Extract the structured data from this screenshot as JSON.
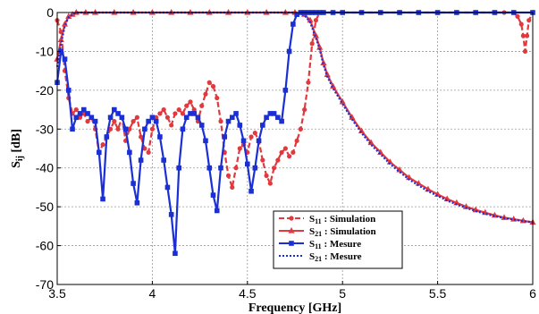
{
  "chart_data": {
    "type": "line",
    "title": "",
    "xlabel": "Frequency [GHz]",
    "ylabel_main": "S",
    "ylabel_sub": "ij",
    "ylabel_unit": " [dB]",
    "xlim": [
      3.5,
      6.0
    ],
    "ylim": [
      -70,
      0
    ],
    "xticks": [
      3.5,
      4,
      4.5,
      5,
      5.5,
      6
    ],
    "xtick_labels": [
      "3.5",
      "4",
      "4.5",
      "5",
      "5.5",
      "6"
    ],
    "yticks": [
      0,
      -10,
      -20,
      -30,
      -40,
      -50,
      -60,
      -70
    ],
    "ytick_labels": [
      "0",
      "-10",
      "-20",
      "-30",
      "-40",
      "-50",
      "-60",
      "-70"
    ],
    "grid": true,
    "legend_position": "bottom-right",
    "series": [
      {
        "id": "s11_sim",
        "name_main": "S",
        "name_sub": "11",
        "name_rest": " : Simulation",
        "color": "#e0393e",
        "dash": "dashed",
        "marker": "circle",
        "x": [
          3.5,
          3.52,
          3.54,
          3.56,
          3.58,
          3.6,
          3.62,
          3.64,
          3.66,
          3.68,
          3.7,
          3.72,
          3.74,
          3.76,
          3.78,
          3.8,
          3.82,
          3.84,
          3.86,
          3.88,
          3.9,
          3.92,
          3.94,
          3.96,
          3.98,
          4.0,
          4.02,
          4.04,
          4.06,
          4.08,
          4.1,
          4.12,
          4.14,
          4.16,
          4.18,
          4.2,
          4.22,
          4.24,
          4.26,
          4.28,
          4.3,
          4.32,
          4.34,
          4.36,
          4.38,
          4.4,
          4.42,
          4.44,
          4.46,
          4.48,
          4.5,
          4.52,
          4.54,
          4.56,
          4.58,
          4.6,
          4.62,
          4.64,
          4.66,
          4.68,
          4.7,
          4.72,
          4.74,
          4.76,
          4.78,
          4.8,
          4.82,
          4.84,
          4.86,
          4.88,
          4.9,
          4.95,
          5.0,
          5.1,
          5.2,
          5.3,
          5.4,
          5.5,
          5.6,
          5.7,
          5.8,
          5.85,
          5.9,
          5.92,
          5.94,
          5.95,
          5.96,
          5.97,
          5.98,
          6.0
        ],
        "y": [
          -2,
          -5,
          -15,
          -22,
          -26,
          -25,
          -27,
          -26,
          -28,
          -27,
          -30,
          -36,
          -34,
          -32,
          -30,
          -28,
          -30,
          -27,
          -33,
          -30,
          -28,
          -27,
          -32,
          -35,
          -36,
          -30,
          -27,
          -26,
          -25,
          -27,
          -29,
          -26,
          -25,
          -26,
          -24,
          -23,
          -25,
          -28,
          -24,
          -21,
          -18,
          -19,
          -22,
          -28,
          -36,
          -42,
          -45,
          -40,
          -35,
          -34,
          -36,
          -32,
          -31,
          -33,
          -38,
          -42,
          -44,
          -40,
          -38,
          -36,
          -35,
          -37,
          -36,
          -33,
          -30,
          -25,
          -18,
          -8,
          -2,
          0,
          0,
          0,
          0,
          0,
          0,
          0,
          0,
          0,
          0,
          0,
          0,
          0,
          0,
          -1,
          -3,
          -6,
          -10,
          -6,
          -2,
          0
        ]
      },
      {
        "id": "s21_sim",
        "name_main": "S",
        "name_sub": "21",
        "name_rest": " : Simulation",
        "color": "#e0393e",
        "dash": "solid",
        "marker": "triangle",
        "x": [
          3.5,
          3.52,
          3.54,
          3.56,
          3.58,
          3.6,
          3.65,
          3.7,
          3.8,
          3.9,
          4.0,
          4.1,
          4.2,
          4.3,
          4.4,
          4.5,
          4.6,
          4.7,
          4.75,
          4.8,
          4.83,
          4.86,
          4.88,
          4.9,
          4.92,
          4.95,
          5.0,
          5.05,
          5.1,
          5.15,
          5.2,
          5.25,
          5.3,
          5.35,
          5.4,
          5.45,
          5.5,
          5.55,
          5.6,
          5.65,
          5.7,
          5.75,
          5.8,
          5.85,
          5.9,
          5.95,
          6.0
        ],
        "y": [
          -12,
          -7,
          -3,
          -1,
          -0.5,
          0,
          0,
          0,
          0,
          0,
          0,
          0,
          0,
          0,
          0,
          0,
          0,
          0,
          0,
          -0.5,
          -2,
          -6,
          -9,
          -13,
          -16,
          -19,
          -23,
          -27,
          -30.5,
          -33.5,
          -36,
          -38.5,
          -40.5,
          -42.5,
          -44,
          -45.5,
          -46.8,
          -48,
          -49,
          -50,
          -50.8,
          -51.5,
          -52.2,
          -52.8,
          -53.2,
          -53.6,
          -54
        ]
      },
      {
        "id": "s11_mes",
        "name_main": "S",
        "name_sub": "11",
        "name_rest": " : Mesure",
        "color": "#1a2fd6",
        "dash": "solid",
        "marker": "square",
        "x": [
          3.5,
          3.52,
          3.54,
          3.56,
          3.58,
          3.6,
          3.62,
          3.64,
          3.66,
          3.68,
          3.7,
          3.72,
          3.74,
          3.76,
          3.78,
          3.8,
          3.82,
          3.84,
          3.86,
          3.88,
          3.9,
          3.92,
          3.94,
          3.96,
          3.98,
          4.0,
          4.02,
          4.04,
          4.06,
          4.08,
          4.1,
          4.12,
          4.14,
          4.16,
          4.18,
          4.2,
          4.22,
          4.24,
          4.26,
          4.28,
          4.3,
          4.32,
          4.34,
          4.36,
          4.38,
          4.4,
          4.42,
          4.44,
          4.46,
          4.48,
          4.5,
          4.52,
          4.54,
          4.56,
          4.58,
          4.6,
          4.62,
          4.64,
          4.66,
          4.68,
          4.7,
          4.72,
          4.74,
          4.76,
          4.78,
          4.8,
          4.82,
          4.84,
          4.86,
          4.88,
          4.9,
          4.95,
          5.0,
          5.1,
          5.2,
          5.3,
          5.4,
          5.5,
          5.6,
          5.7,
          5.8,
          5.9,
          6.0
        ],
        "y": [
          -18,
          -10,
          -12,
          -20,
          -30,
          -27,
          -26,
          -25,
          -26,
          -27,
          -28,
          -36,
          -48,
          -32,
          -27,
          -25,
          -26,
          -27,
          -30,
          -36,
          -44,
          -49,
          -38,
          -30,
          -28,
          -27,
          -28,
          -32,
          -38,
          -45,
          -52,
          -62,
          -40,
          -30,
          -27,
          -26,
          -26,
          -27,
          -29,
          -33,
          -40,
          -47,
          -51,
          -40,
          -32,
          -28,
          -27,
          -26,
          -29,
          -33,
          -39,
          -46,
          -40,
          -33,
          -29,
          -27,
          -26,
          -26,
          -27,
          -28,
          -20,
          -10,
          -3,
          -0.5,
          0,
          0,
          0,
          0,
          0,
          0,
          0,
          0,
          0,
          0,
          0,
          0,
          0,
          0,
          0,
          0,
          0,
          0,
          0
        ]
      },
      {
        "id": "s21_mes",
        "name_main": "S",
        "name_sub": "21",
        "name_rest": " : Mesure",
        "color": "#1a2fd6",
        "dash": "dotted",
        "marker": "none",
        "x": [
          3.5,
          3.52,
          3.54,
          3.56,
          3.58,
          3.6,
          3.65,
          3.7,
          3.8,
          3.9,
          4.0,
          4.1,
          4.2,
          4.3,
          4.4,
          4.5,
          4.6,
          4.7,
          4.75,
          4.8,
          4.83,
          4.86,
          4.88,
          4.9,
          4.92,
          4.95,
          5.0,
          5.05,
          5.1,
          5.15,
          5.2,
          5.25,
          5.3,
          5.35,
          5.4,
          5.45,
          5.5,
          5.55,
          5.6,
          5.65,
          5.7,
          5.75,
          5.8,
          5.85,
          5.9,
          5.95,
          6.0
        ],
        "y": [
          -14,
          -8,
          -3.5,
          -1.2,
          -0.5,
          0,
          0,
          0,
          0,
          0,
          0,
          0,
          0,
          0,
          0,
          0,
          0,
          0,
          0,
          -0.7,
          -2.5,
          -6.5,
          -9.5,
          -13.5,
          -16.5,
          -19.5,
          -23.5,
          -27.5,
          -31,
          -34,
          -36.5,
          -39,
          -41,
          -43,
          -44.5,
          -46,
          -47.2,
          -48.4,
          -49.4,
          -50.3,
          -51.1,
          -51.8,
          -52.4,
          -52.9,
          -53.3,
          -53.7,
          -54
        ]
      }
    ]
  }
}
